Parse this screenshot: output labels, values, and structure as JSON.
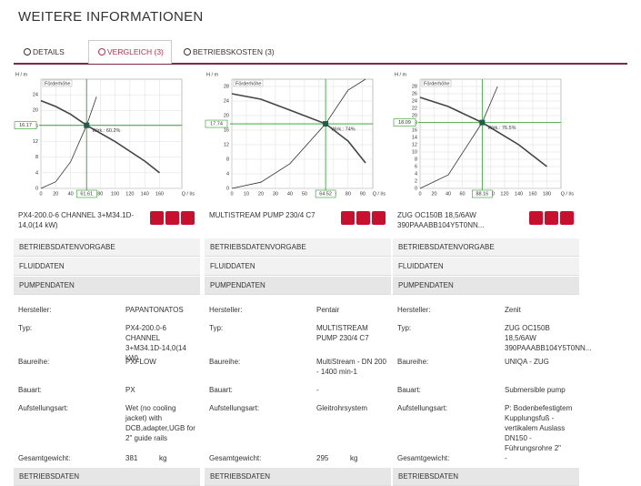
{
  "header": {
    "title": "WEITERE INFORMATIONEN"
  },
  "tabs": [
    {
      "label": "DETAILS"
    },
    {
      "label": "VERGLEICH (3)",
      "active": true
    },
    {
      "label": "BETRIEBSKOSTEN (3)"
    }
  ],
  "products": [
    {
      "name": "PX4-200.0-6 CHANNEL 3+M34.1D-14,0(14 kW)",
      "chart": {
        "type": "line",
        "y_label": "H / m",
        "title": "Förderhöhe",
        "x_label": "Q / l/s",
        "annotation": "Wirk.: 60.2%",
        "xlim": [
          0,
          190
        ],
        "ylim": [
          0,
          28
        ],
        "xticks": [
          0,
          20,
          40,
          60,
          80,
          100,
          120,
          140,
          160
        ],
        "yticks": [
          0,
          4,
          8,
          12,
          16,
          20,
          24
        ],
        "series": [
          {
            "color": "#444444",
            "x": [
              0,
              20,
              40,
              61.61,
              100,
              140,
              160
            ],
            "y": [
              22.5,
              21,
              19,
              16.17,
              12,
              7,
              4
            ]
          },
          {
            "color": "#333333",
            "x": [
              0,
              20,
              40,
              61.61,
              75
            ],
            "y": [
              0,
              1.7,
              6.8,
              16.17,
              23.5
            ]
          }
        ],
        "operating_point": {
          "x": 61.61,
          "y": 16.17
        }
      },
      "sections": [
        "BETRIEBSDATENVORGABE",
        "FLUIDDATEN",
        "PUMPENDATEN"
      ],
      "details": [
        {
          "label": "Hersteller:",
          "value": "PAPANTONATOS"
        },
        {
          "label": "Typ:",
          "value": "PX4-200.0-6 CHANNEL 3+M34.1D-14,0(14 kW)"
        },
        {
          "label": "Baureihe:",
          "value": "PXFLOW"
        },
        {
          "label": "Bauart:",
          "value": "PX"
        },
        {
          "label": "Aufstellungsart:",
          "value": "Wet (no cooling jacket) with DCB,adapter,UGB for 2\" guide rails"
        },
        {
          "label": "Gesamtgewicht:",
          "value": "381",
          "unit": "kg"
        }
      ],
      "footer_section": "BETRIEBSDATEN"
    },
    {
      "name": "MULTISTREAM PUMP 230/4 C7",
      "chart": {
        "type": "line",
        "y_label": "H / m",
        "title": "Förderhöhe",
        "x_label": "Q / l/s",
        "annotation": "Wirk.: 74%",
        "xlim": [
          0,
          97
        ],
        "ylim": [
          0,
          30
        ],
        "xticks": [
          0,
          10,
          20,
          30,
          40,
          50,
          60,
          70,
          80,
          90
        ],
        "yticks": [
          0,
          4,
          8,
          12,
          16,
          20,
          24,
          28
        ],
        "series": [
          {
            "color": "#444444",
            "x": [
              0,
              20,
              40,
              64.52,
              80,
              92
            ],
            "y": [
              26,
              24.5,
              21.5,
              17.74,
              13,
              7
            ]
          },
          {
            "color": "#333333",
            "x": [
              0,
              20,
              40,
              64.52,
              80,
              92
            ],
            "y": [
              0,
              1.7,
              6.8,
              17.74,
              27,
              30
            ]
          }
        ],
        "operating_point": {
          "x": 64.52,
          "y": 17.74
        }
      },
      "sections": [
        "BETRIEBSDATENVORGABE",
        "FLUIDDATEN",
        "PUMPENDATEN"
      ],
      "details": [
        {
          "label": "Hersteller:",
          "value": "Pentair"
        },
        {
          "label": "Typ:",
          "value": "MULTISTREAM PUMP 230/4 C7"
        },
        {
          "label": "Baureihe:",
          "value": "MultiStream - DN 200 - 1400 min-1"
        },
        {
          "label": "Bauart:",
          "value": "-"
        },
        {
          "label": "Aufstellungsart:",
          "value": "Gleitrohrsystem"
        },
        {
          "label": "Gesamtgewicht:",
          "value": "295",
          "unit": "kg"
        }
      ],
      "footer_section": "BETRIEBSDATEN"
    },
    {
      "name": "ZUG OC150B 18,5/6AW 390PAAABB104Y5T0NN...",
      "chart": {
        "type": "line",
        "y_label": "H / m",
        "title": "Förderhöhe",
        "x_label": "Q / l/s",
        "annotation": "Wirk.: 76.5%",
        "xlim": [
          0,
          200
        ],
        "ylim": [
          0,
          30
        ],
        "xticks": [
          0,
          20,
          40,
          60,
          80,
          100,
          120,
          140,
          160,
          180
        ],
        "yticks": [
          0,
          2,
          4,
          6,
          8,
          10,
          12,
          14,
          16,
          18,
          20,
          22,
          24,
          26,
          28
        ],
        "series": [
          {
            "color": "#444444",
            "x": [
              0,
              40,
              88.16,
              140,
              180
            ],
            "y": [
              25,
              22.5,
              18.09,
              12,
              6
            ]
          },
          {
            "color": "#333333",
            "x": [
              0,
              40,
              88.16,
              110
            ],
            "y": [
              0,
              3.7,
              18.09,
              28
            ]
          }
        ],
        "operating_point": {
          "x": 88.16,
          "y": 18.09
        }
      },
      "sections": [
        "BETRIEBSDATENVORGABE",
        "FLUIDDATEN",
        "PUMPENDATEN"
      ],
      "details": [
        {
          "label": "Hersteller:",
          "value": "Zenit"
        },
        {
          "label": "Typ:",
          "value": "ZUG OC150B 18,5/6AW 390PAAABB104Y5T0NN..."
        },
        {
          "label": "Baureihe:",
          "value": "UNIQA - ZUG"
        },
        {
          "label": "Bauart:",
          "value": "Submersible pump"
        },
        {
          "label": "Aufstellungsart:",
          "value": "P: Bodenbefestigtem Kupplungsfuß - vertikalem Auslass DN150 - Führungsrohre 2\""
        },
        {
          "label": "Gesamtgewicht:",
          "value": "-"
        }
      ],
      "footer_section": "BETRIEBSDATEN"
    }
  ]
}
